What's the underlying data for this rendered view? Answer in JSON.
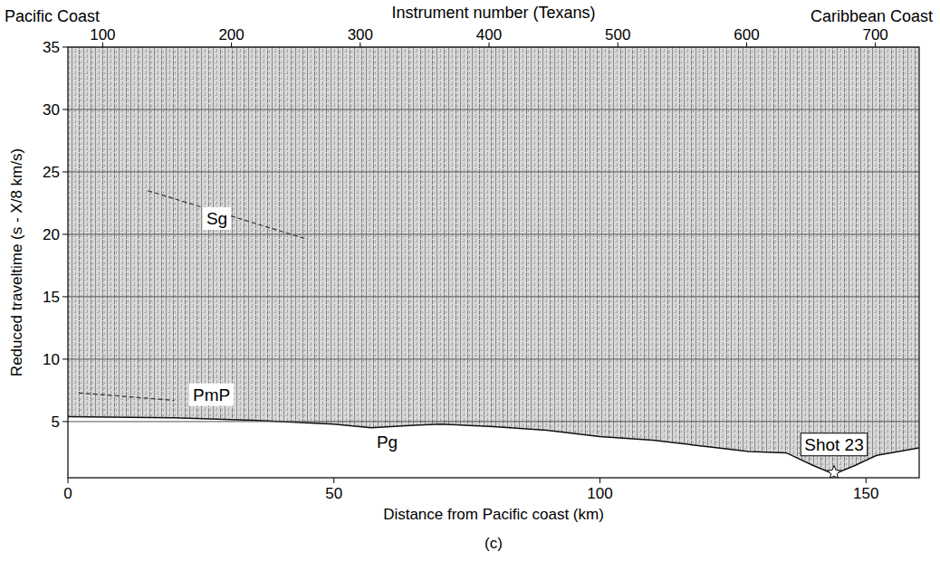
{
  "chart_data": {
    "type": "line",
    "x_label": "Distance from Pacific coast (km)",
    "y_label": "Reduced traveltime (s - X/8 km/s)",
    "x2_label": "Instrument number (Texans)",
    "left_label": "Pacific Coast",
    "right_label": "Caribbean Coast",
    "caption": "(c)",
    "xlim": [
      0,
      160
    ],
    "xticks": [
      0,
      50,
      100,
      150
    ],
    "x2lim": [
      73,
      734
    ],
    "x2ticks": [
      100,
      200,
      300,
      400,
      500,
      600,
      700
    ],
    "ylim": [
      0.5,
      35
    ],
    "yticks": [
      5,
      10,
      15,
      20,
      25,
      30,
      35
    ],
    "grid": true,
    "series": [
      {
        "name": "Pg",
        "color": "#111111",
        "label_x": 60,
        "label_y": 3.4,
        "x": [
          0,
          20,
          35,
          50,
          57,
          65,
          70,
          80,
          90,
          100,
          110,
          120,
          128,
          135,
          140,
          144,
          148,
          152,
          160
        ],
        "values": [
          5.4,
          5.3,
          5.1,
          4.8,
          4.5,
          4.7,
          4.8,
          4.6,
          4.3,
          3.8,
          3.5,
          3.0,
          2.6,
          2.5,
          1.5,
          0.8,
          1.5,
          2.3,
          2.9
        ]
      },
      {
        "name": "PmP",
        "color": "#333333",
        "label_x": 27,
        "label_y": 7.2,
        "x": [
          2,
          8,
          14,
          20
        ],
        "values": [
          7.3,
          7.1,
          6.9,
          6.7
        ]
      },
      {
        "name": "Sg",
        "color": "#333333",
        "label_x": 28,
        "label_y": 21.3,
        "x": [
          15,
          25,
          35,
          45
        ],
        "values": [
          23.5,
          22.2,
          20.9,
          19.6
        ]
      }
    ],
    "annotations": [
      {
        "text": "Shot 23",
        "x": 144,
        "y": 3.2,
        "point_x": 144,
        "point_y": 0.9,
        "marker": "star"
      }
    ]
  }
}
